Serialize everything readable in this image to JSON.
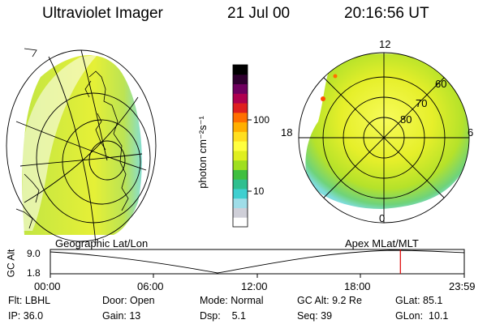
{
  "header": {
    "title": "Ultraviolet Imager",
    "date": "21 Jul 00",
    "time": "20:16:56 UT"
  },
  "colorbar": {
    "unit_label": "photon cm⁻²s⁻¹",
    "tick_100": "100",
    "tick_10": "10",
    "colors": [
      "#ffffff",
      "#cfcfd8",
      "#9fdde8",
      "#3fcfd0",
      "#2fbf8f",
      "#3fbf3f",
      "#9fdf1f",
      "#dfef1f",
      "#ffff3f",
      "#ffdf1f",
      "#ffaf00",
      "#ff6f00",
      "#df1f1f",
      "#af004f",
      "#6f005f",
      "#2f002f",
      "#000000"
    ]
  },
  "polar": {
    "lat_labels": [
      "60",
      "70",
      "80"
    ],
    "mlt_labels": [
      "12",
      "18",
      "6",
      "0"
    ]
  },
  "timeline": {
    "left_label": "Geographic Lat/Lon",
    "right_label": "Apex MLat/MLT",
    "axis_title": "GC Alt",
    "y_top": "9.0",
    "y_bottom": "1.8",
    "x_ticks": [
      "00:00",
      "06:00",
      "12:00",
      "18:00",
      "23:59"
    ],
    "current_marker_hour": 20.28,
    "marker_color": "#dd0000"
  },
  "status": {
    "row1": {
      "flt": "Flt: LBHL",
      "door": "Door: Open",
      "mode": "Mode: Normal",
      "gcalt": "GC Alt: 9.2 Re",
      "glat": "GLat: 85.1"
    },
    "row2": {
      "ip": "IP: 36.0",
      "gain": "Gain: 13",
      "dsp": "Dsp:    5.1",
      "seq": "Seq: 39",
      "glon": "GLon:  10.1"
    }
  }
}
